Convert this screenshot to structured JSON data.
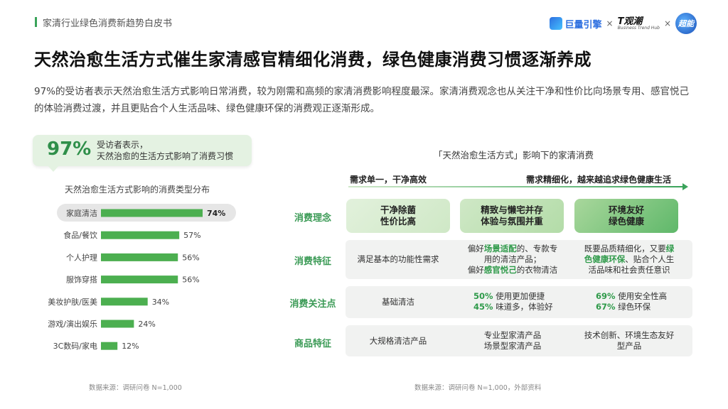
{
  "header": {
    "section_title": "家清行业绿色消费新趋势白皮书"
  },
  "logos": {
    "juliang": "巨量引擎",
    "times": "×",
    "tguanchao": "T观潮",
    "tguanchao_sub": "Business Trend Hub",
    "chaoneng": "超能"
  },
  "title": "天然治愈生活方式催生家清感官精细化消费，绿色健康消费习惯逐渐养成",
  "description": "97%的受访者表示天然治愈生活方式影响日常消费，较为刚需和高频的家清消费影响程度最深。家清消费观念也从关注干净和性价比向场景专用、感官悦己的体验消费过渡，并且更贴合个人生活品味、绿色健康环保的消费观正逐渐形成。",
  "callout": {
    "pct": "97%",
    "line1": "受访者表示，",
    "line2": "天然治愈的生活方式影响了消费习惯"
  },
  "chart_data": {
    "type": "bar",
    "orientation": "horizontal",
    "title": "天然治愈生活方式影响的消费类型分布",
    "categories": [
      "家庭清洁",
      "食品/餐饮",
      "个人护理",
      "服饰穿搭",
      "美妆护肤/医美",
      "游戏/演出娱乐",
      "3C数码/家电"
    ],
    "values": [
      74,
      57,
      56,
      56,
      34,
      24,
      12
    ],
    "labels": [
      "74%",
      "57%",
      "56%",
      "56%",
      "34%",
      "24%",
      "12%"
    ],
    "xlim": [
      0,
      74
    ],
    "color": "#4caf50",
    "highlight_index": 0
  },
  "source_left": "数据来源：调研问卷 N=1,000",
  "source_right": "数据来源：调研问卷 N=1,000，外部资料",
  "table": {
    "title": "「天然治愈生活方式」影响下的家清消费",
    "head_left": "需求单一，干净高效",
    "head_right": "需求精细化，越来越追求绿色健康生活",
    "row_labels": [
      "消费理念",
      "消费特征",
      "消费关注点",
      "商品特征"
    ],
    "concept": [
      {
        "l1": "干净除菌",
        "l2": "性价比高"
      },
      {
        "l1": "精致与懒宅并存",
        "l2": "体验与氛围并重"
      },
      {
        "l1": "环境友好",
        "l2": "绿色健康"
      }
    ],
    "feature": {
      "c1": "满足基本的功能性需求",
      "c2_a": "偏好",
      "c2_b": "场景适配",
      "c2_c": "的、专款专",
      "c2_d": "用的清洁产品；",
      "c2_e": "偏好",
      "c2_f": "感官悦己",
      "c2_g": "的衣物清洁",
      "c3_a": "既要品质精细化，又要",
      "c3_b": "绿",
      "c3_c": "色健康环保",
      "c3_d": "、贴合个人生",
      "c3_e": "活品味和社会责任意识"
    },
    "focus": {
      "c1": "基础清洁",
      "c2_p1": "50%",
      "c2_t1": "使用更加便捷",
      "c2_p2": "45%",
      "c2_t2": "味道多，体验好",
      "c3_p1": "69%",
      "c3_t1": "使用安全性高",
      "c3_p2": "67%",
      "c3_t2": "绿色环保"
    },
    "product": {
      "c1": "大规格清洁产品",
      "c2_l1": "专业型家清产品",
      "c2_l2": "场景型家清产品",
      "c3_l1": "技术创新、环境生态友好",
      "c3_l2": "型产品"
    }
  }
}
